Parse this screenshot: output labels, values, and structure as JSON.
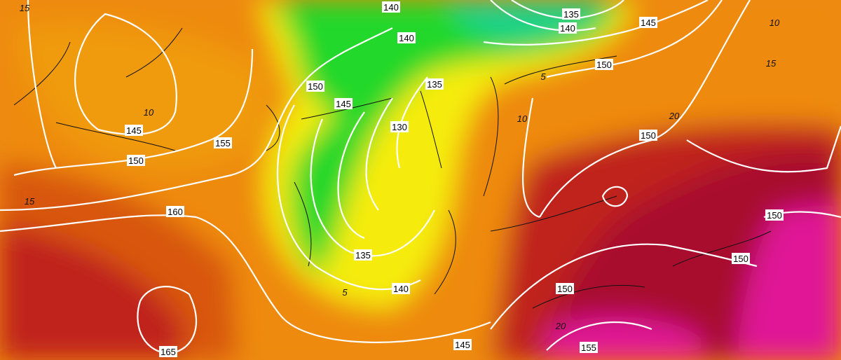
{
  "map": {
    "colors": {
      "green": "#22d82a",
      "teal": "#1ed28a",
      "yellow": "#f5ec10",
      "orange": "#ee8a0a",
      "dark_orange": "#d8560e",
      "red": "#c0201e",
      "crimson": "#a8082e",
      "magenta": "#e01896"
    },
    "height_labels": [
      "140",
      "140",
      "135",
      "140",
      "145",
      "150",
      "145",
      "135",
      "130",
      "150",
      "145",
      "150",
      "155",
      "160",
      "165",
      "135",
      "140",
      "145",
      "150",
      "150",
      "150",
      "150",
      "155"
    ],
    "temp_labels": [
      "15",
      "10",
      "15",
      "5",
      "10",
      "5",
      "20",
      "20",
      "10",
      "15"
    ]
  }
}
